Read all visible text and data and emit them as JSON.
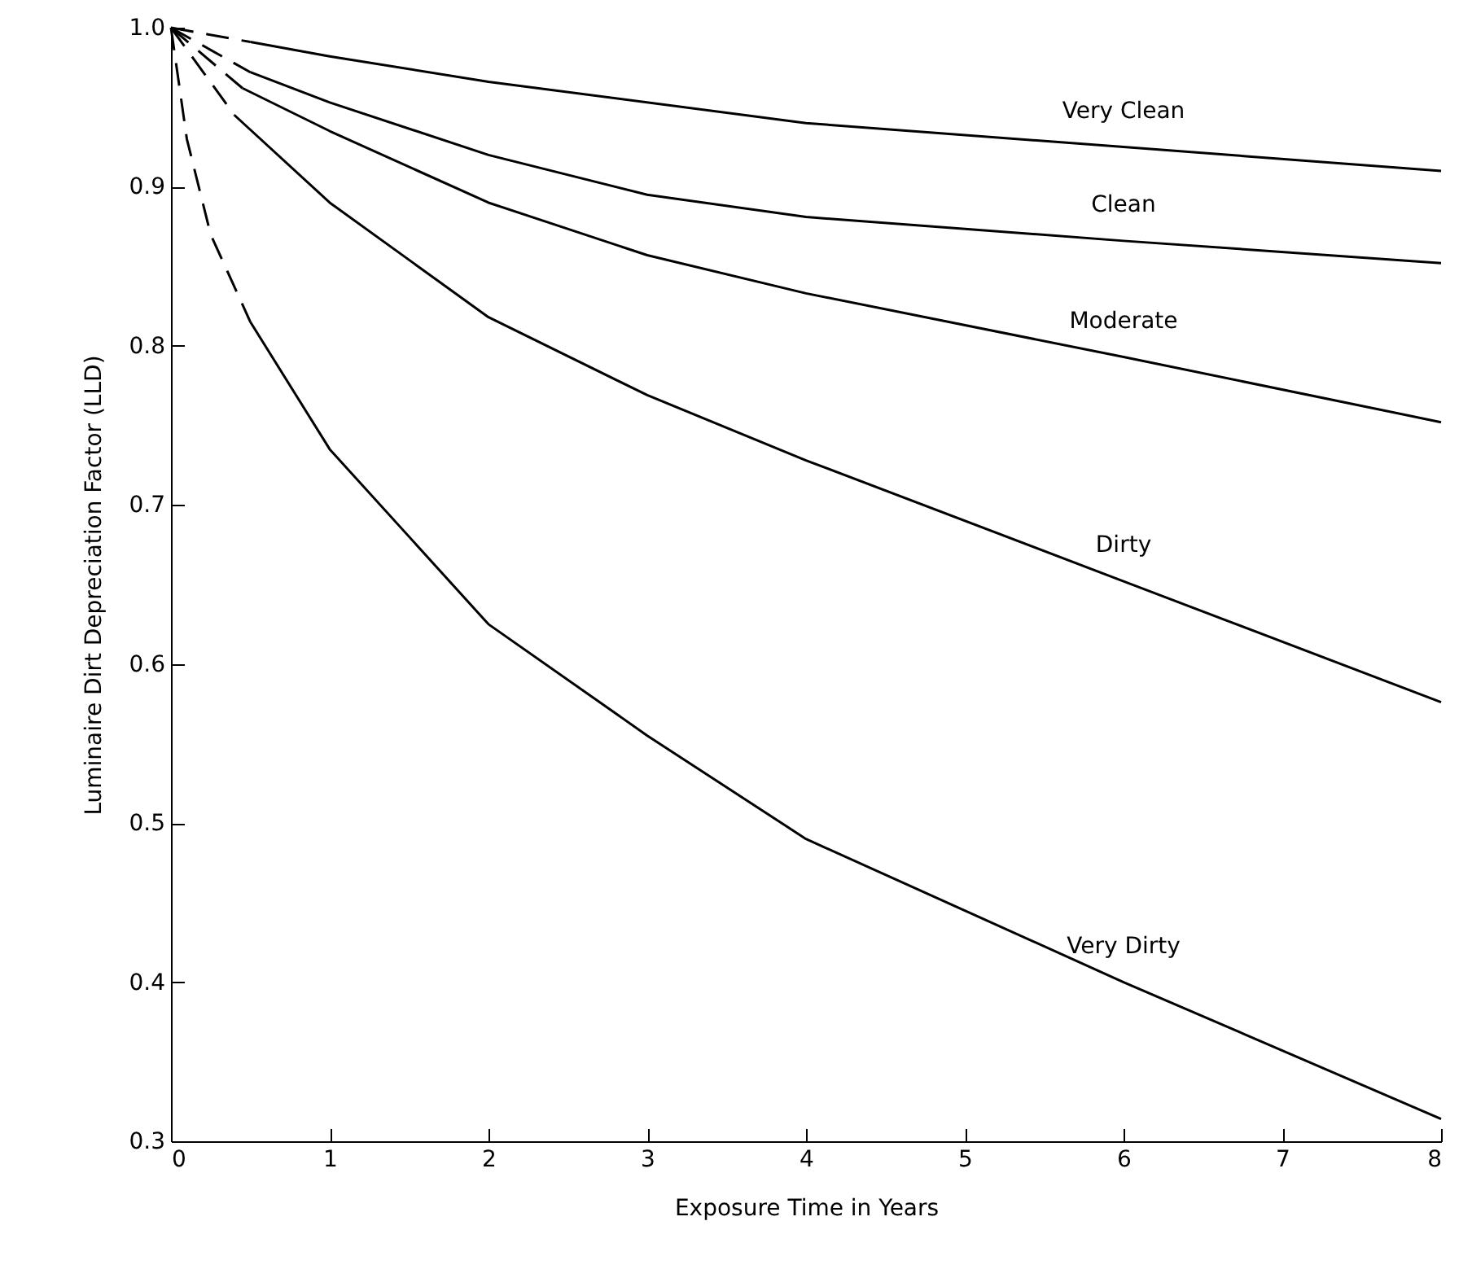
{
  "chart_data": {
    "type": "line",
    "xlabel": "Exposure Time in Years",
    "ylabel": "Luminaire Dirt Depreciation Factor (LLD)",
    "xlim": [
      0,
      8
    ],
    "xticks": [
      0,
      1,
      2,
      3,
      4,
      5,
      6,
      7,
      8
    ],
    "ylim": [
      0.3,
      1.0
    ],
    "yticks": [
      0.3,
      0.4,
      0.5,
      0.6,
      0.7,
      0.8,
      0.9,
      {
        "value": 1.0,
        "label": "1.0"
      }
    ],
    "grid": false,
    "marker": "none",
    "series": [
      {
        "color": "#000000",
        "line_style": "dashed",
        "x": [
          0,
          0.5
        ],
        "values": [
          1.0,
          0.991
        ]
      },
      {
        "name": "Very Clean",
        "color": "#000000",
        "line_style": "solid",
        "x": [
          0.5,
          1,
          2,
          4,
          6,
          8
        ],
        "values": [
          0.991,
          0.982,
          0.966,
          0.94,
          0.925,
          0.91
        ]
      },
      {
        "color": "#000000",
        "line_style": "dashed",
        "x": [
          0,
          0.5
        ],
        "values": [
          1.0,
          0.972
        ]
      },
      {
        "name": "Clean",
        "color": "#000000",
        "line_style": "solid",
        "x": [
          0.5,
          1,
          2,
          3,
          4,
          6,
          8
        ],
        "values": [
          0.972,
          0.953,
          0.92,
          0.895,
          0.881,
          0.866,
          0.852
        ]
      },
      {
        "color": "#000000",
        "line_style": "dashed",
        "x": [
          0,
          0.45
        ],
        "values": [
          1.0,
          0.962
        ]
      },
      {
        "name": "Moderate",
        "color": "#000000",
        "line_style": "solid",
        "x": [
          0.45,
          1,
          2,
          3,
          4,
          6,
          8
        ],
        "values": [
          0.962,
          0.935,
          0.89,
          0.857,
          0.833,
          0.793,
          0.752
        ]
      },
      {
        "color": "#000000",
        "line_style": "dashed",
        "x": [
          0,
          0.4
        ],
        "values": [
          1.0,
          0.945
        ]
      },
      {
        "name": "Dirty",
        "color": "#000000",
        "line_style": "solid",
        "x": [
          0.4,
          1,
          2,
          3,
          4,
          6,
          8
        ],
        "values": [
          0.945,
          0.89,
          0.818,
          0.769,
          0.728,
          0.652,
          0.576
        ]
      },
      {
        "color": "#000000",
        "line_style": "dashed",
        "x": [
          0,
          0.1,
          0.25,
          0.5
        ],
        "values": [
          1.0,
          0.93,
          0.87,
          0.815
        ]
      },
      {
        "name": "Very Dirty",
        "color": "#000000",
        "line_style": "solid",
        "x": [
          0.5,
          1,
          2,
          3,
          4,
          5,
          6,
          8
        ],
        "values": [
          0.815,
          0.735,
          0.625,
          0.555,
          0.49,
          0.445,
          0.4,
          0.314
        ]
      }
    ]
  }
}
